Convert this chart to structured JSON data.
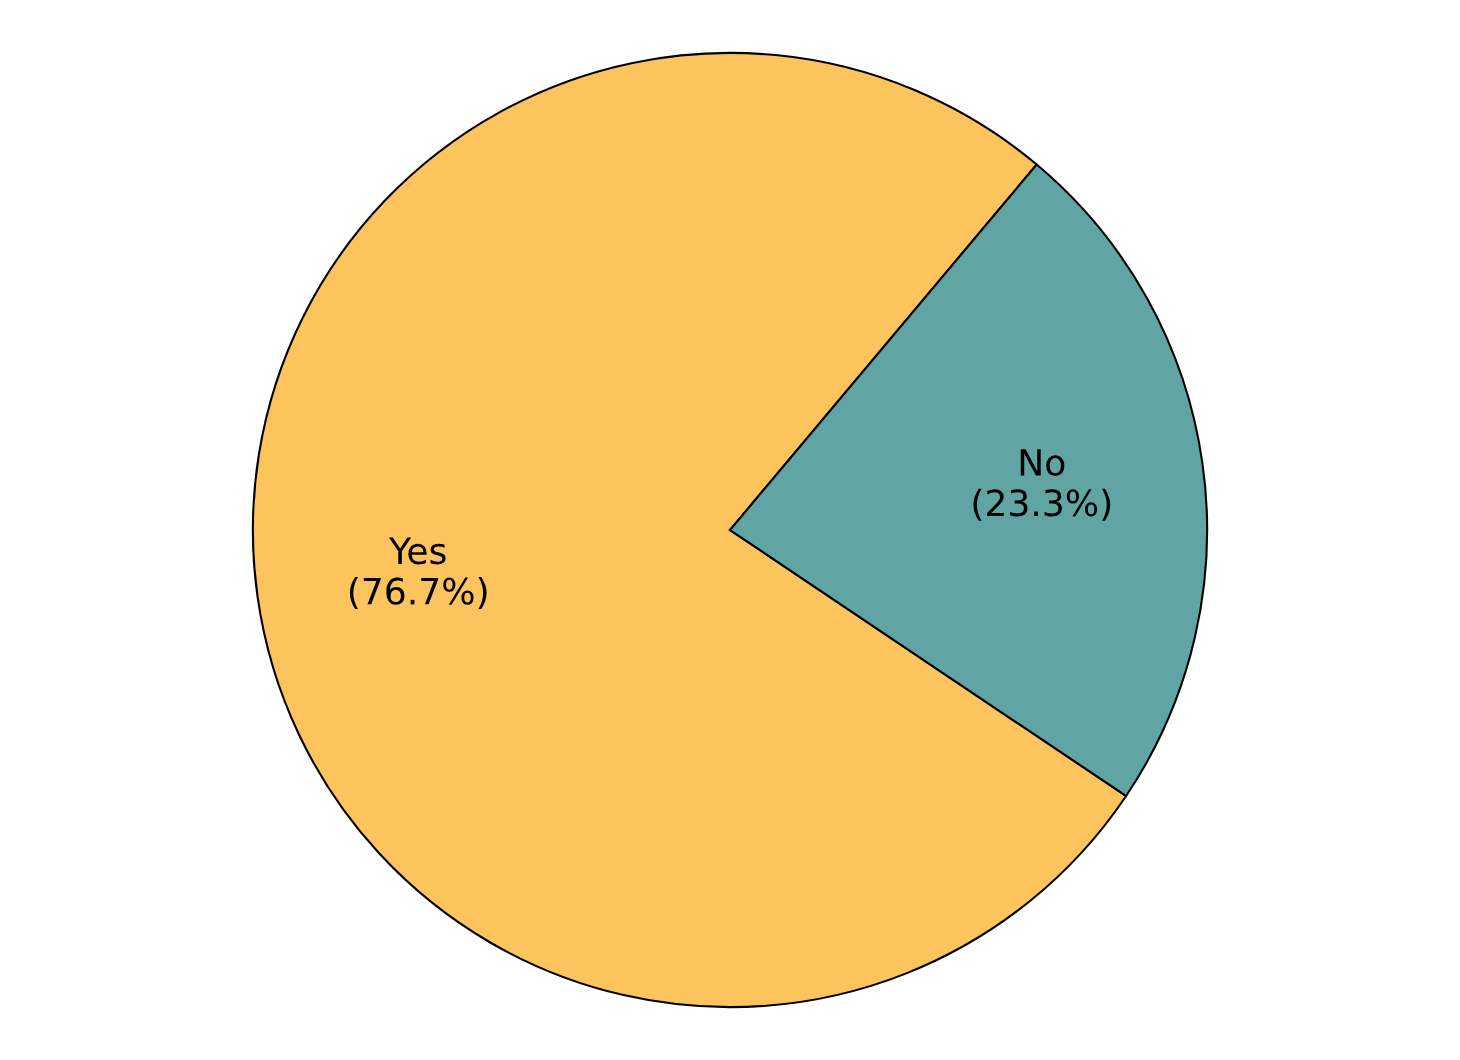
{
  "chart_data": {
    "type": "pie",
    "categories": [
      "Yes",
      "No"
    ],
    "values": [
      76.7,
      23.3
    ],
    "colors": [
      "#fdc45e",
      "#61a4a4"
    ],
    "value_labels": [
      "(76.7%)",
      "(23.3%)"
    ]
  }
}
